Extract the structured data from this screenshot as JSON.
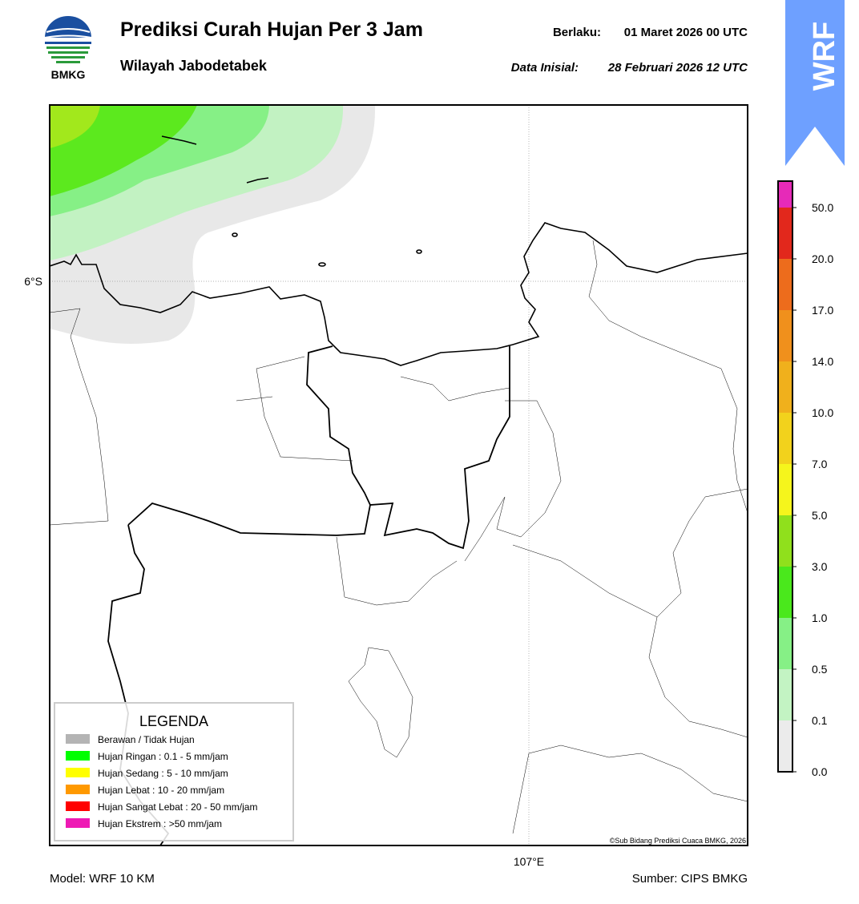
{
  "header": {
    "logo_text": "BMKG",
    "title": "Prediksi Curah Hujan Per 3 Jam",
    "subtitle": "Wilayah Jabodetabek",
    "valid_label": "Berlaku:",
    "valid_time": "01 Maret 2026 00 UTC",
    "init_label": "Data Inisial:",
    "init_time": "28 Februari 2026 12 UTC",
    "badge": "WRF"
  },
  "map": {
    "lat_label": "6°S",
    "lon_label": "107°E",
    "credit": "©Sub Bidang Prediksi Cuaca BMKG, 2026"
  },
  "legend": {
    "title": "LEGENDA",
    "items": [
      {
        "label": "Berawan / Tidak Hujan",
        "color": "#b4b4b4"
      },
      {
        "label": "Hujan Ringan : 0.1 - 5 mm/jam",
        "color": "#00ff00"
      },
      {
        "label": "Hujan Sedang : 5 - 10 mm/jam",
        "color": "#ffff00"
      },
      {
        "label": "Hujan Lebat : 10 - 20 mm/jam",
        "color": "#ff9900"
      },
      {
        "label": "Hujan Sangat Lebat : 20 - 50 mm/jam",
        "color": "#ff0000"
      },
      {
        "label": "Hujan Ekstrem : >50 mm/jam",
        "color": "#ee1ab4"
      }
    ]
  },
  "colorbar": {
    "ticks": [
      "0.0",
      "0.1",
      "0.5",
      "1.0",
      "3.0",
      "5.0",
      "7.0",
      "10.0",
      "14.0",
      "17.0",
      "20.0",
      "50.0"
    ],
    "colors": [
      "#ebebeb",
      "#c3f3c3",
      "#86f086",
      "#4ae81c",
      "#90e01c",
      "#f5f51c",
      "#f2d21c",
      "#f0b01c",
      "#f0901c",
      "#ed6c1c",
      "#e2281c",
      "#e62ab8"
    ]
  },
  "footer": {
    "model": "Model: WRF 10 KM",
    "source": "Sumber: CIPS BMKG"
  }
}
